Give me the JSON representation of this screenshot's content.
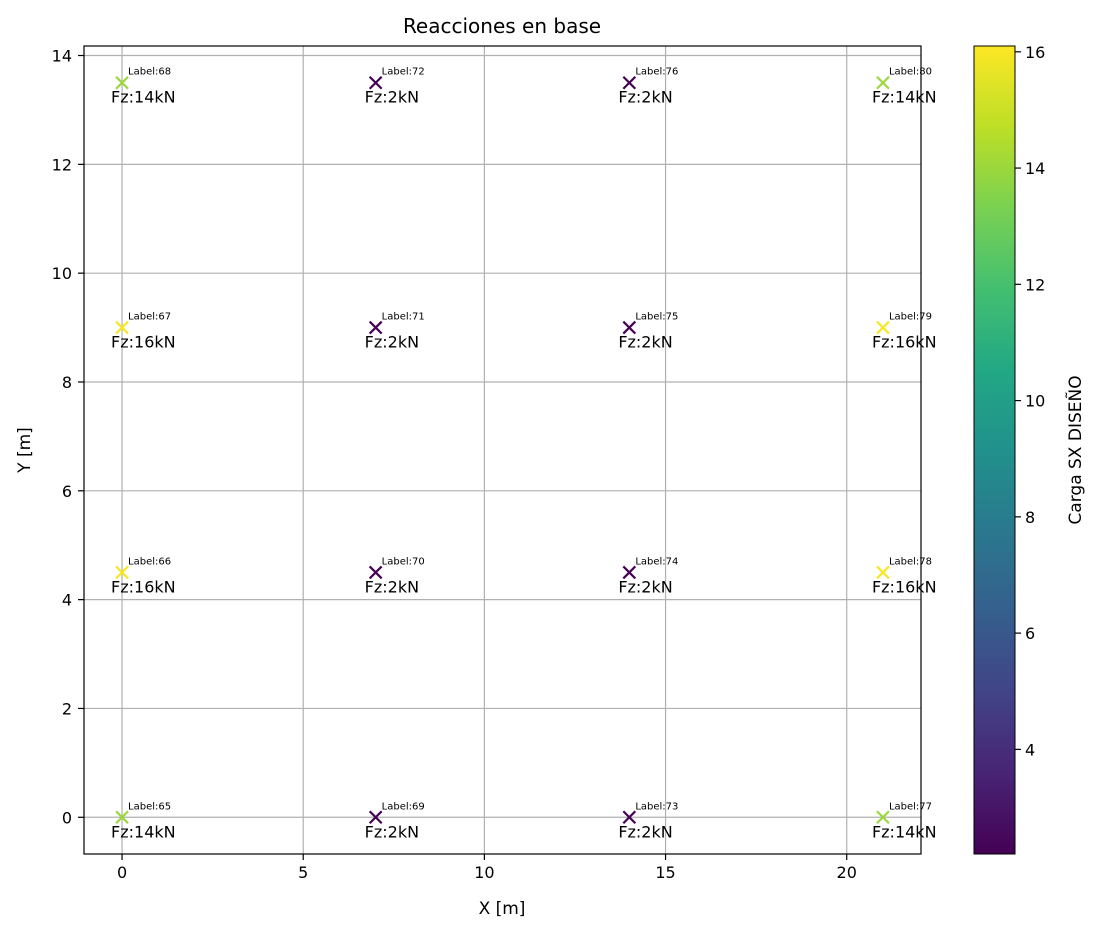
{
  "chart_data": {
    "type": "scatter",
    "title": "Reacciones en base",
    "xlabel": "X [m]",
    "ylabel": "Y [m]",
    "xlim": [
      -1.05,
      22.05
    ],
    "ylim": [
      -0.675,
      14.175
    ],
    "xticks": [
      0,
      5,
      10,
      15,
      20
    ],
    "yticks": [
      0,
      2,
      4,
      6,
      8,
      10,
      12,
      14
    ],
    "grid": true,
    "marker": "x",
    "colormap": "viridis",
    "colorbar": {
      "label": "Carga SX DISEÑO",
      "range": [
        2.2,
        16.1
      ],
      "ticks": [
        4,
        6,
        8,
        10,
        12,
        14,
        16
      ]
    },
    "points": [
      {
        "label": "Label:65",
        "x": 0,
        "y": 0,
        "value": 14,
        "text": "Fz:14kN"
      },
      {
        "label": "Label:66",
        "x": 0,
        "y": 4.5,
        "value": 16,
        "text": "Fz:16kN"
      },
      {
        "label": "Label:67",
        "x": 0,
        "y": 9,
        "value": 16,
        "text": "Fz:16kN"
      },
      {
        "label": "Label:68",
        "x": 0,
        "y": 13.5,
        "value": 14,
        "text": "Fz:14kN"
      },
      {
        "label": "Label:69",
        "x": 7,
        "y": 0,
        "value": 2,
        "text": "Fz:2kN"
      },
      {
        "label": "Label:70",
        "x": 7,
        "y": 4.5,
        "value": 2,
        "text": "Fz:2kN"
      },
      {
        "label": "Label:71",
        "x": 7,
        "y": 9,
        "value": 2,
        "text": "Fz:2kN"
      },
      {
        "label": "Label:72",
        "x": 7,
        "y": 13.5,
        "value": 2,
        "text": "Fz:2kN"
      },
      {
        "label": "Label:73",
        "x": 14,
        "y": 0,
        "value": 2,
        "text": "Fz:2kN"
      },
      {
        "label": "Label:74",
        "x": 14,
        "y": 4.5,
        "value": 2,
        "text": "Fz:2kN"
      },
      {
        "label": "Label:75",
        "x": 14,
        "y": 9,
        "value": 2,
        "text": "Fz:2kN"
      },
      {
        "label": "Label:76",
        "x": 14,
        "y": 13.5,
        "value": 2,
        "text": "Fz:2kN"
      },
      {
        "label": "Label:77",
        "x": 21,
        "y": 0,
        "value": 14,
        "text": "Fz:14kN"
      },
      {
        "label": "Label:78",
        "x": 21,
        "y": 4.5,
        "value": 16,
        "text": "Fz:16kN"
      },
      {
        "label": "Label:79",
        "x": 21,
        "y": 9,
        "value": 16,
        "text": "Fz:16kN"
      },
      {
        "label": "Label:80",
        "x": 21,
        "y": 13.5,
        "value": 14,
        "text": "Fz:14kN"
      }
    ]
  }
}
